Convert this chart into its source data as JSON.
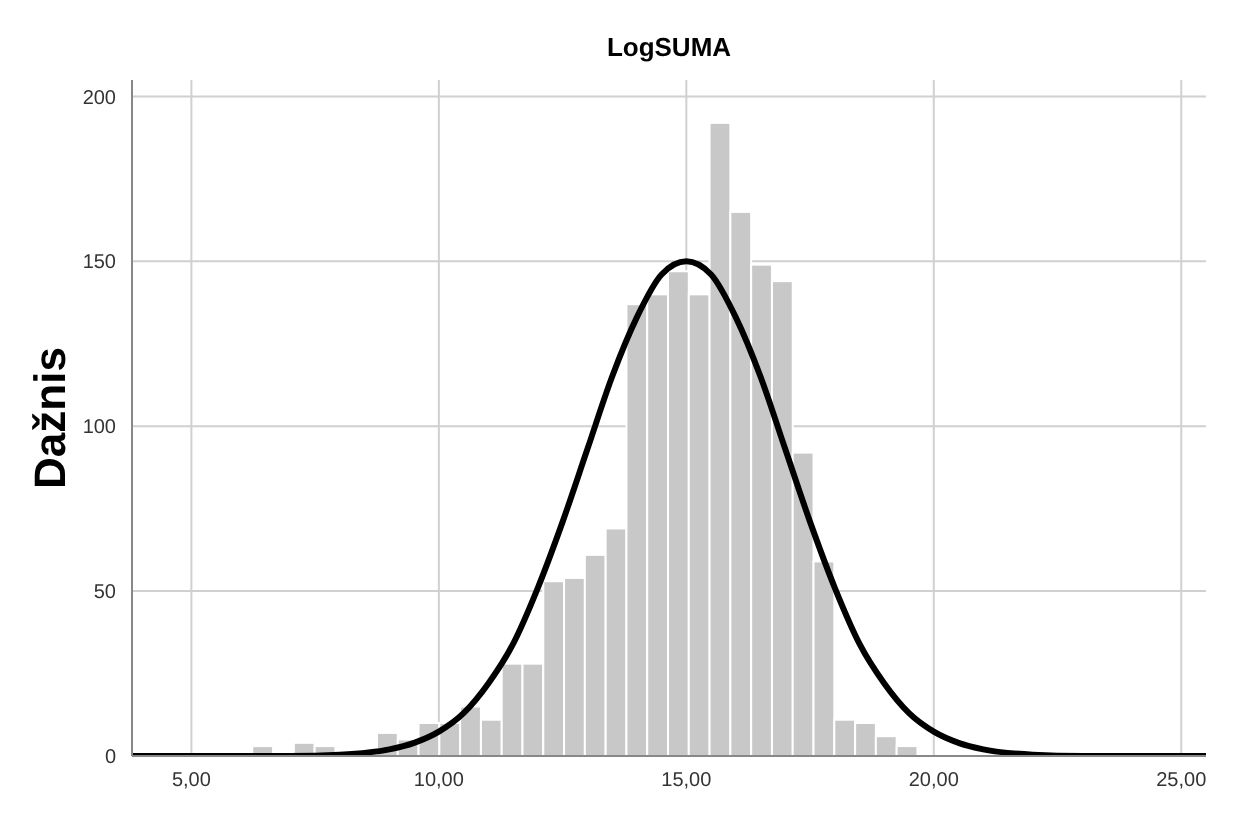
{
  "chart_data": {
    "type": "histogram",
    "title": "LogSUMA",
    "ylabel": "Dažnis",
    "bins": [
      6.23,
      6.65,
      7.07,
      7.49,
      7.91,
      8.33,
      8.75,
      9.17,
      9.59,
      10.01,
      10.43,
      10.85,
      11.27,
      11.69,
      12.11,
      12.53,
      12.95,
      13.37,
      13.79,
      14.21,
      14.63,
      15.05,
      15.47,
      15.89,
      16.31,
      16.73,
      17.15,
      17.57,
      17.99,
      18.41,
      18.83,
      19.25,
      19.67
    ],
    "values": [
      3,
      0,
      4,
      3,
      0,
      0,
      7,
      5,
      10,
      10,
      15,
      11,
      28,
      28,
      53,
      54,
      61,
      69,
      137,
      140,
      147,
      140,
      192,
      165,
      149,
      144,
      92,
      59,
      11,
      10,
      6,
      3
    ],
    "color": "#c8c8c8",
    "series": [
      {
        "type": "line",
        "color": "#000000",
        "x": [
          3.8,
          7,
          8,
          9,
          9.5,
          10,
          10.5,
          11,
          11.5,
          12,
          12.5,
          13,
          13.5,
          14,
          14.5,
          15,
          15.5,
          16,
          16.5,
          17,
          17.5,
          18,
          18.5,
          19,
          19.5,
          20,
          20.5,
          21,
          22,
          23,
          25.5
        ],
        "values": [
          0,
          0,
          0.4,
          2,
          4,
          7.4,
          13,
          22,
          34,
          51,
          71,
          93,
          115,
          133,
          146,
          150,
          146,
          133,
          115,
          93,
          71,
          51,
          34,
          22,
          13,
          7.4,
          4,
          2,
          0.4,
          0,
          0
        ]
      }
    ],
    "xlim": [
      3.8,
      25.5
    ],
    "xticks": [
      {
        "value": 5,
        "label": "5,00"
      },
      {
        "value": 10,
        "label": "10,00"
      },
      {
        "value": 15,
        "label": "15,00"
      },
      {
        "value": 20,
        "label": "20,00"
      },
      {
        "value": 25,
        "label": "25,00"
      }
    ],
    "ylim": [
      0,
      205
    ],
    "yticks": [
      0,
      50,
      100,
      150,
      200
    ],
    "grid": true
  }
}
